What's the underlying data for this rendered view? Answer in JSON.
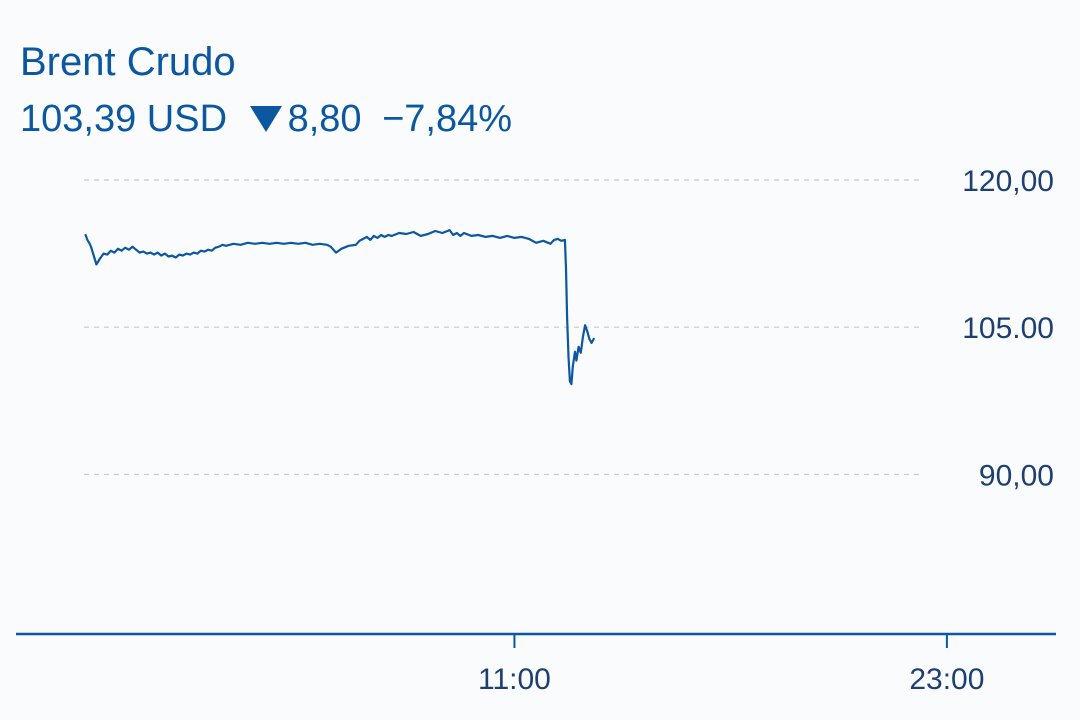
{
  "header": {
    "title": "Brent Crudo",
    "price": "103,39 USD",
    "change": "8,80",
    "change_pct": "−7,84%",
    "direction": "down"
  },
  "colors": {
    "line": "#0b57a0",
    "text": "#0b57a0",
    "axis_text": "#1d3f72",
    "grid": "#c4c9d1",
    "background": "#fafbfd"
  },
  "chart_data": {
    "type": "line",
    "title": "Brent Crudo",
    "xlabel": "",
    "ylabel": "",
    "x_ticks": [
      {
        "value": 11,
        "label": "11:00"
      },
      {
        "value": 23,
        "label": "23:00"
      }
    ],
    "y_ticks": [
      {
        "value": 120,
        "label": "120,00"
      },
      {
        "value": 105,
        "label": "105.00"
      },
      {
        "value": 90,
        "label": "90,00"
      }
    ],
    "xlim": [
      -1,
      26
    ],
    "ylim": [
      77,
      120
    ],
    "grid": true,
    "legend": "none",
    "series": [
      {
        "values": [
          [
            -0.9,
            114.4
          ],
          [
            -0.85,
            113.9
          ],
          [
            -0.8,
            113.6
          ],
          [
            -0.75,
            113.2
          ],
          [
            -0.7,
            112.6
          ],
          [
            -0.65,
            112.0
          ],
          [
            -0.6,
            111.4
          ],
          [
            -0.55,
            111.7
          ],
          [
            -0.5,
            112.0
          ],
          [
            -0.4,
            112.5
          ],
          [
            -0.3,
            112.4
          ],
          [
            -0.2,
            112.8
          ],
          [
            -0.1,
            112.6
          ],
          [
            0.0,
            113.0
          ],
          [
            0.1,
            112.8
          ],
          [
            0.2,
            113.1
          ],
          [
            0.3,
            112.9
          ],
          [
            0.4,
            113.2
          ],
          [
            0.5,
            112.9
          ],
          [
            0.6,
            112.6
          ],
          [
            0.7,
            112.7
          ],
          [
            0.8,
            112.5
          ],
          [
            0.9,
            112.6
          ],
          [
            1.0,
            112.4
          ],
          [
            1.1,
            112.6
          ],
          [
            1.2,
            112.3
          ],
          [
            1.3,
            112.5
          ],
          [
            1.4,
            112.2
          ],
          [
            1.5,
            112.3
          ],
          [
            1.6,
            112.1
          ],
          [
            1.7,
            112.4
          ],
          [
            1.8,
            112.3
          ],
          [
            1.9,
            112.5
          ],
          [
            2.0,
            112.4
          ],
          [
            2.1,
            112.6
          ],
          [
            2.2,
            112.5
          ],
          [
            2.3,
            112.8
          ],
          [
            2.4,
            112.7
          ],
          [
            2.5,
            112.9
          ],
          [
            2.6,
            112.8
          ],
          [
            2.7,
            113.1
          ],
          [
            2.8,
            113.2
          ],
          [
            2.9,
            113.4
          ],
          [
            3.0,
            113.3
          ],
          [
            3.2,
            113.5
          ],
          [
            3.4,
            113.4
          ],
          [
            3.6,
            113.6
          ],
          [
            3.8,
            113.5
          ],
          [
            4.0,
            113.6
          ],
          [
            4.2,
            113.5
          ],
          [
            4.4,
            113.6
          ],
          [
            4.6,
            113.5
          ],
          [
            4.8,
            113.6
          ],
          [
            5.0,
            113.5
          ],
          [
            5.2,
            113.6
          ],
          [
            5.4,
            113.4
          ],
          [
            5.6,
            113.5
          ],
          [
            5.8,
            113.4
          ],
          [
            5.9,
            113.2
          ],
          [
            6.0,
            112.8
          ],
          [
            6.05,
            112.6
          ],
          [
            6.2,
            113.0
          ],
          [
            6.4,
            113.3
          ],
          [
            6.6,
            113.4
          ],
          [
            6.7,
            113.8
          ],
          [
            6.8,
            114.0
          ],
          [
            6.9,
            114.2
          ],
          [
            7.0,
            113.9
          ],
          [
            7.1,
            114.3
          ],
          [
            7.2,
            114.1
          ],
          [
            7.3,
            114.4
          ],
          [
            7.4,
            114.2
          ],
          [
            7.5,
            114.4
          ],
          [
            7.6,
            114.3
          ],
          [
            7.8,
            114.6
          ],
          [
            8.0,
            114.5
          ],
          [
            8.2,
            114.7
          ],
          [
            8.4,
            114.3
          ],
          [
            8.6,
            114.5
          ],
          [
            8.8,
            114.8
          ],
          [
            9.0,
            114.6
          ],
          [
            9.2,
            114.9
          ],
          [
            9.3,
            114.4
          ],
          [
            9.4,
            114.6
          ],
          [
            9.5,
            114.3
          ],
          [
            9.6,
            114.6
          ],
          [
            9.8,
            114.3
          ],
          [
            10.0,
            114.4
          ],
          [
            10.2,
            114.2
          ],
          [
            10.4,
            114.3
          ],
          [
            10.6,
            114.1
          ],
          [
            10.8,
            114.3
          ],
          [
            11.0,
            114.1
          ],
          [
            11.2,
            114.2
          ],
          [
            11.4,
            114.0
          ],
          [
            11.6,
            113.6
          ],
          [
            11.8,
            113.8
          ],
          [
            12.0,
            113.5
          ],
          [
            12.1,
            113.9
          ],
          [
            12.2,
            114.0
          ],
          [
            12.3,
            113.8
          ],
          [
            12.4,
            113.9
          ],
          [
            12.43,
            111.0
          ],
          [
            12.46,
            106.0
          ],
          [
            12.5,
            102.0
          ],
          [
            12.54,
            99.5
          ],
          [
            12.58,
            99.2
          ],
          [
            12.62,
            101.0
          ],
          [
            12.68,
            102.5
          ],
          [
            12.72,
            101.6
          ],
          [
            12.78,
            103.0
          ],
          [
            12.84,
            102.4
          ],
          [
            12.9,
            104.0
          ],
          [
            12.96,
            105.2
          ],
          [
            13.02,
            104.6
          ],
          [
            13.08,
            103.8
          ],
          [
            13.14,
            103.4
          ],
          [
            13.2,
            103.8
          ]
        ]
      }
    ]
  }
}
